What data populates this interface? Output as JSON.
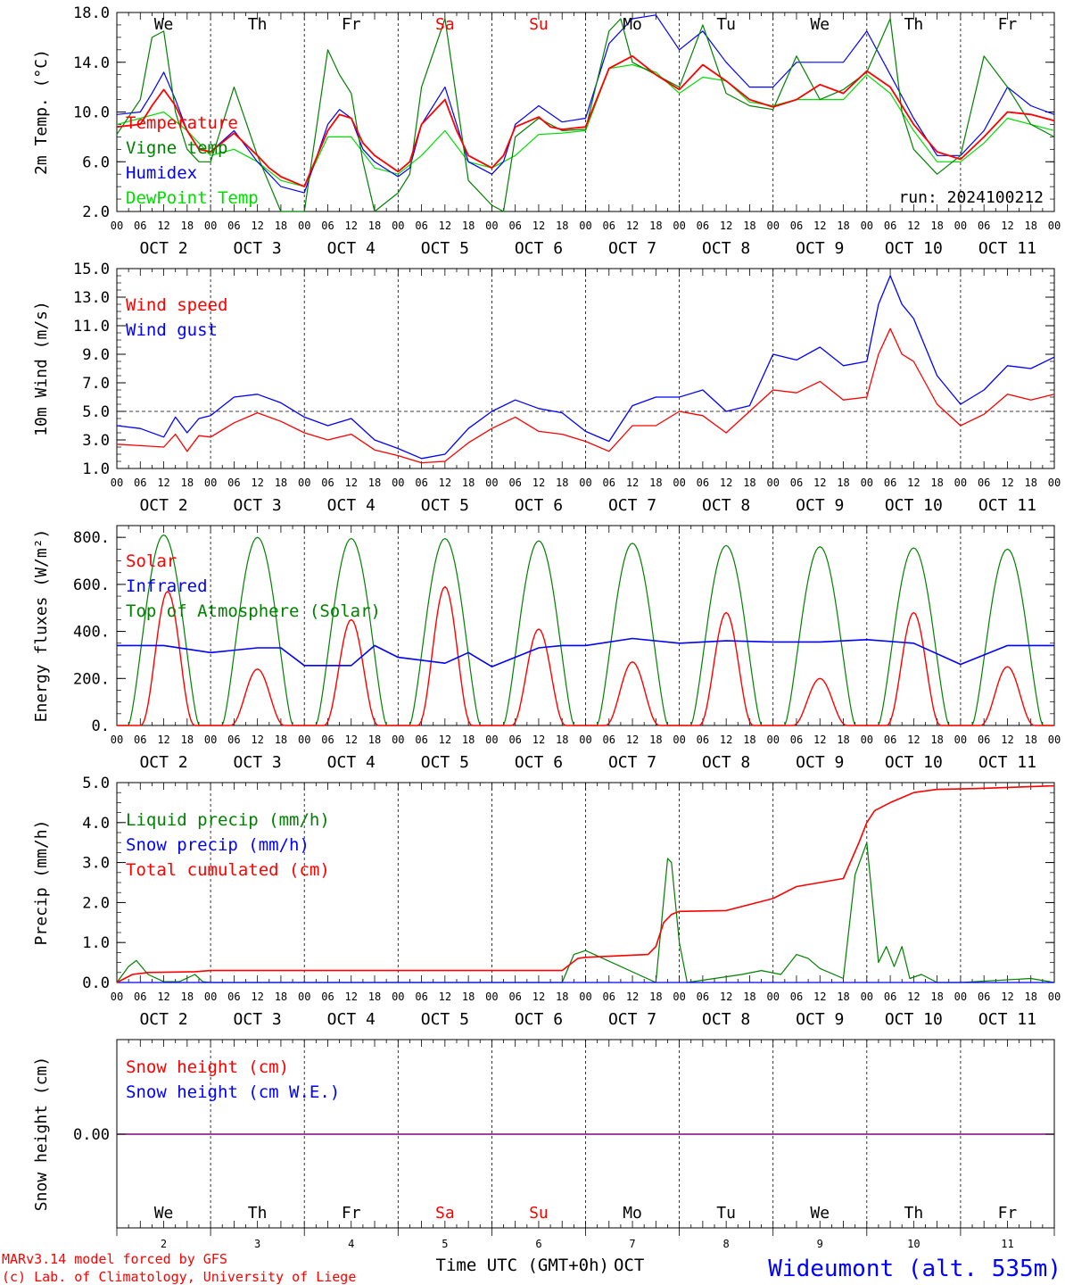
{
  "meteogram": {
    "day_names": [
      "We",
      "Th",
      "Fr",
      "Sa",
      "Su",
      "Mo",
      "Tu",
      "We",
      "Th",
      "Fr"
    ],
    "weekend_flags": [
      false,
      false,
      false,
      true,
      true,
      false,
      false,
      false,
      false,
      false
    ],
    "date_labels": [
      "OCT  2",
      "OCT  3",
      "OCT  4",
      "OCT  5",
      "OCT  6",
      "OCT  7",
      "OCT  8",
      "OCT  9",
      "OCT 10",
      "OCT 11"
    ],
    "day_numbers": [
      "2",
      "3",
      "4",
      "5",
      "6",
      "7",
      "8",
      "9",
      "10",
      "11"
    ],
    "hour_ticks": [
      "00",
      "06",
      "12",
      "18"
    ],
    "run_label": "run: 2024100212",
    "x_axis_label": "Time UTC (GMT+0h)",
    "x_axis_month": "OCT",
    "credit_line1": "MARv3.14 model forced by GFS",
    "credit_line2": "(c) Lab. of Climatology, University of Liege",
    "station_label": "Wideumont (alt. 535m)",
    "colors": {
      "red": "#ff0000",
      "green": "#008000",
      "blue": "#0000ff",
      "lightgreen": "#00dd00",
      "purple": "#800080",
      "axis": "#000000"
    }
  },
  "chart_data": [
    {
      "type": "line",
      "ylabel": "2m Temp. (°C)",
      "ylim": [
        2,
        18
      ],
      "yticks": [
        "2.0",
        "6.0",
        "10.0",
        "14.0",
        "18.0"
      ],
      "x_unit": "hours since 2 Oct 00 UTC",
      "series": [
        {
          "name": "Temperature",
          "color": "#ff0000",
          "x": [
            0,
            6,
            9,
            12,
            15,
            18,
            21,
            24,
            30,
            36,
            39,
            42,
            48,
            54,
            57,
            60,
            63,
            66,
            72,
            75,
            78,
            84,
            87,
            90,
            96,
            99,
            102,
            108,
            111,
            114,
            120,
            126,
            132,
            138,
            144,
            150,
            156,
            162,
            168,
            174,
            180,
            186,
            192,
            198,
            204,
            210,
            216,
            222,
            228,
            234,
            240
          ],
          "y": [
            8.8,
            9.0,
            10.5,
            11.8,
            10.5,
            8.5,
            7.0,
            6.8,
            8.3,
            6.5,
            5.5,
            4.8,
            4.0,
            8.5,
            9.8,
            9.5,
            7.5,
            6.5,
            5.2,
            6.0,
            9.0,
            11.0,
            8.5,
            6.5,
            5.5,
            6.5,
            8.8,
            9.6,
            8.8,
            8.6,
            8.8,
            13.5,
            14.5,
            13.0,
            11.8,
            13.8,
            12.5,
            11.0,
            10.4,
            11.0,
            12.2,
            11.5,
            13.3,
            12.0,
            9.0,
            6.8,
            6.2,
            8.0,
            10.0,
            9.8,
            9.3
          ]
        },
        {
          "name": "Vigne temp",
          "color": "#008000",
          "x": [
            0,
            6,
            9,
            12,
            15,
            18,
            21,
            24,
            30,
            36,
            42,
            48,
            54,
            57,
            60,
            63,
            66,
            72,
            75,
            78,
            84,
            87,
            90,
            96,
            99,
            102,
            108,
            114,
            120,
            126,
            129,
            132,
            138,
            144,
            150,
            156,
            162,
            168,
            174,
            180,
            186,
            192,
            198,
            201,
            204,
            210,
            216,
            222,
            228,
            234,
            240
          ],
          "y": [
            8.2,
            11.0,
            16.0,
            16.5,
            10.0,
            7.0,
            6.0,
            6.0,
            12.0,
            6.5,
            0.5,
            0.0,
            15.0,
            13.0,
            11.5,
            6.0,
            0.0,
            3.5,
            5.0,
            12.0,
            17.5,
            11.0,
            4.5,
            2.5,
            1.5,
            8.0,
            9.5,
            8.5,
            8.6,
            16.5,
            17.5,
            14.0,
            13.0,
            12.0,
            17.0,
            11.5,
            10.5,
            10.2,
            14.5,
            11.0,
            11.8,
            13.2,
            17.5,
            10.0,
            7.0,
            5.0,
            6.5,
            14.5,
            12.0,
            9.0,
            8.0
          ]
        },
        {
          "name": "Humidex",
          "color": "#0000ff",
          "x": [
            0,
            6,
            9,
            12,
            15,
            18,
            21,
            24,
            30,
            36,
            42,
            48,
            54,
            57,
            60,
            63,
            66,
            72,
            75,
            78,
            84,
            87,
            90,
            96,
            99,
            102,
            108,
            114,
            120,
            126,
            132,
            138,
            144,
            150,
            156,
            162,
            168,
            174,
            180,
            186,
            192,
            198,
            204,
            210,
            216,
            222,
            228,
            234,
            240
          ],
          "y": [
            9.8,
            10.0,
            11.5,
            13.2,
            11.0,
            8.5,
            7.0,
            6.8,
            8.5,
            6.0,
            4.0,
            3.5,
            9.0,
            10.2,
            9.5,
            7.0,
            6.0,
            4.8,
            5.5,
            9.0,
            12.0,
            9.0,
            6.0,
            5.0,
            6.0,
            9.0,
            10.5,
            9.2,
            9.5,
            15.5,
            17.5,
            17.8,
            15.0,
            16.5,
            14.0,
            12.0,
            12.0,
            14.0,
            14.0,
            14.0,
            16.5,
            13.0,
            9.5,
            6.5,
            6.5,
            8.5,
            12.0,
            10.5,
            9.8
          ]
        },
        {
          "name": "DewPoint Temp",
          "color": "#00dd00",
          "x": [
            0,
            6,
            12,
            18,
            24,
            30,
            36,
            42,
            48,
            54,
            60,
            66,
            72,
            78,
            84,
            90,
            96,
            102,
            108,
            114,
            120,
            126,
            132,
            138,
            144,
            150,
            156,
            162,
            168,
            174,
            180,
            186,
            192,
            198,
            204,
            210,
            216,
            222,
            228,
            234,
            240
          ],
          "y": [
            9.0,
            9.5,
            10.0,
            8.5,
            6.5,
            7.0,
            6.0,
            4.5,
            4.0,
            8.0,
            8.0,
            5.5,
            5.0,
            6.5,
            8.5,
            6.0,
            5.5,
            6.5,
            8.2,
            8.3,
            8.5,
            13.5,
            13.8,
            13.2,
            11.5,
            12.8,
            12.5,
            10.8,
            10.5,
            11.0,
            11.0,
            11.0,
            13.0,
            11.5,
            8.5,
            6.0,
            6.0,
            7.5,
            9.5,
            9.0,
            8.5
          ]
        }
      ],
      "legend": [
        "Temperature",
        "Vigne temp",
        "Humidex",
        "DewPoint Temp"
      ]
    },
    {
      "type": "line",
      "ylabel": "10m Wind (m/s)",
      "ylim": [
        1,
        15
      ],
      "yticks": [
        "1.0",
        "3.0",
        "5.0",
        "7.0",
        "9.0",
        "11.0",
        "13.0",
        "15.0"
      ],
      "reference_line": 5,
      "series": [
        {
          "name": "Wind speed",
          "color": "#ff0000",
          "x": [
            0,
            6,
            12,
            15,
            18,
            21,
            24,
            30,
            36,
            42,
            48,
            54,
            60,
            66,
            72,
            78,
            84,
            90,
            96,
            102,
            108,
            114,
            120,
            126,
            132,
            138,
            144,
            150,
            156,
            162,
            168,
            174,
            180,
            186,
            192,
            195,
            198,
            201,
            204,
            210,
            216,
            222,
            228,
            234,
            240
          ],
          "y": [
            2.7,
            2.6,
            2.5,
            3.4,
            2.2,
            3.3,
            3.2,
            4.2,
            4.9,
            4.3,
            3.5,
            3.0,
            3.4,
            2.3,
            1.9,
            1.4,
            1.5,
            2.8,
            3.8,
            4.6,
            3.6,
            3.4,
            2.9,
            2.2,
            4.0,
            4.0,
            5.0,
            4.7,
            3.5,
            5.0,
            6.5,
            6.3,
            7.1,
            5.8,
            6.0,
            9.0,
            10.8,
            9.0,
            8.5,
            5.5,
            4.0,
            4.8,
            6.2,
            5.8,
            6.2
          ]
        },
        {
          "name": "Wind gust",
          "color": "#0000ff",
          "x": [
            0,
            6,
            12,
            15,
            18,
            21,
            24,
            30,
            36,
            42,
            48,
            54,
            60,
            66,
            72,
            78,
            84,
            90,
            96,
            102,
            108,
            114,
            120,
            126,
            132,
            138,
            144,
            150,
            156,
            162,
            168,
            174,
            180,
            186,
            192,
            195,
            198,
            201,
            204,
            210,
            216,
            222,
            228,
            234,
            240
          ],
          "y": [
            4.0,
            3.8,
            3.2,
            4.6,
            3.5,
            4.5,
            4.7,
            6.0,
            6.2,
            5.6,
            4.6,
            4.0,
            4.5,
            3.0,
            2.4,
            1.7,
            2.0,
            3.8,
            5.0,
            5.8,
            5.2,
            4.9,
            3.6,
            2.9,
            5.4,
            6.0,
            6.0,
            6.5,
            5.0,
            5.4,
            9.0,
            8.6,
            9.5,
            8.2,
            8.5,
            12.5,
            14.5,
            12.5,
            11.5,
            7.5,
            5.5,
            6.5,
            8.2,
            8.0,
            8.8
          ]
        }
      ],
      "legend": [
        "Wind speed",
        "Wind gust"
      ]
    },
    {
      "type": "line",
      "ylabel": "Energy fluxes (W/m²)",
      "ylim": [
        0,
        850
      ],
      "yticks": [
        "0.",
        "200.",
        "400.",
        "600.",
        "800."
      ],
      "series": [
        {
          "name": "Solar",
          "color": "#ff0000",
          "peaks_x": [
            13,
            36,
            60,
            84,
            108,
            132,
            156,
            180,
            204,
            228
          ],
          "peaks_y": [
            570,
            240,
            450,
            590,
            410,
            270,
            480,
            200,
            480,
            250
          ]
        },
        {
          "name": "Infrared",
          "color": "#0000ff",
          "x": [
            0,
            12,
            24,
            36,
            42,
            48,
            60,
            66,
            72,
            84,
            90,
            96,
            108,
            114,
            120,
            132,
            144,
            156,
            168,
            180,
            192,
            204,
            216,
            228,
            240
          ],
          "y": [
            340,
            340,
            310,
            330,
            330,
            255,
            255,
            340,
            290,
            265,
            310,
            250,
            330,
            340,
            340,
            370,
            350,
            360,
            355,
            355,
            365,
            350,
            260,
            340,
            340
          ]
        },
        {
          "name": "Top of Atmosphere (Solar)",
          "color": "#008000",
          "peak_x_offset": 12,
          "peaks_y": [
            810,
            800,
            795,
            795,
            785,
            775,
            765,
            760,
            755,
            750
          ]
        }
      ],
      "legend": [
        "Solar",
        "Infrared",
        "Top of Atmosphere (Solar)"
      ]
    },
    {
      "type": "line",
      "ylabel": "Precip (mm/h)",
      "ylim": [
        0,
        5
      ],
      "yticks": [
        "0.0",
        "1.0",
        "2.0",
        "3.0",
        "4.0",
        "5.0"
      ],
      "series": [
        {
          "name": "Liquid precip (mm/h)",
          "color": "#008000",
          "x": [
            0,
            3,
            5,
            8,
            12,
            16,
            20,
            22,
            24,
            114,
            117,
            120,
            138,
            141,
            142,
            144,
            146,
            160,
            165,
            170,
            174,
            177,
            180,
            186,
            189,
            192,
            193,
            195,
            197,
            199,
            201,
            203,
            206,
            210,
            216,
            234,
            240
          ],
          "y": [
            0,
            0.4,
            0.55,
            0.2,
            0.02,
            0.02,
            0.2,
            0.02,
            0,
            0,
            0.7,
            0.8,
            0,
            3.1,
            3.0,
            1.0,
            0,
            0.2,
            0.3,
            0.2,
            0.7,
            0.6,
            0.35,
            0.1,
            2.7,
            3.5,
            2.5,
            0.5,
            0.9,
            0.4,
            0.9,
            0.1,
            0.2,
            0,
            0,
            0.1,
            0
          ]
        },
        {
          "name": "Snow precip (mm/h)",
          "color": "#0000ff",
          "x": [
            0,
            240
          ],
          "y": [
            0,
            0
          ]
        },
        {
          "name": "Total cumulated (cm)",
          "color": "#ff0000",
          "x": [
            0,
            4,
            8,
            20,
            24,
            114,
            118,
            120,
            136,
            138,
            140,
            142,
            144,
            156,
            162,
            168,
            174,
            180,
            186,
            190,
            192,
            194,
            198,
            204,
            210,
            220,
            240
          ],
          "y": [
            0,
            0.2,
            0.25,
            0.27,
            0.3,
            0.3,
            0.6,
            0.63,
            0.7,
            0.9,
            1.5,
            1.7,
            1.78,
            1.8,
            1.95,
            2.1,
            2.4,
            2.5,
            2.6,
            3.5,
            4.0,
            4.3,
            4.5,
            4.75,
            4.83,
            4.85,
            4.92
          ]
        }
      ],
      "legend": [
        "Liquid precip (mm/h)",
        "Snow precip (mm/h)",
        "Total cumulated (cm)"
      ]
    },
    {
      "type": "line",
      "ylabel": "Snow height (cm)",
      "yticks": [
        "0.00"
      ],
      "series": [
        {
          "name": "Snow height (cm)",
          "color": "#ff0000",
          "x": [
            0,
            240
          ],
          "y": [
            0,
            0
          ]
        },
        {
          "name": "Snow height (cm W.E.)",
          "color": "#0000ff",
          "x": [
            0,
            240
          ],
          "y": [
            0,
            0
          ]
        }
      ],
      "legend": [
        "Snow height (cm)",
        "Snow height (cm W.E.)"
      ]
    }
  ]
}
